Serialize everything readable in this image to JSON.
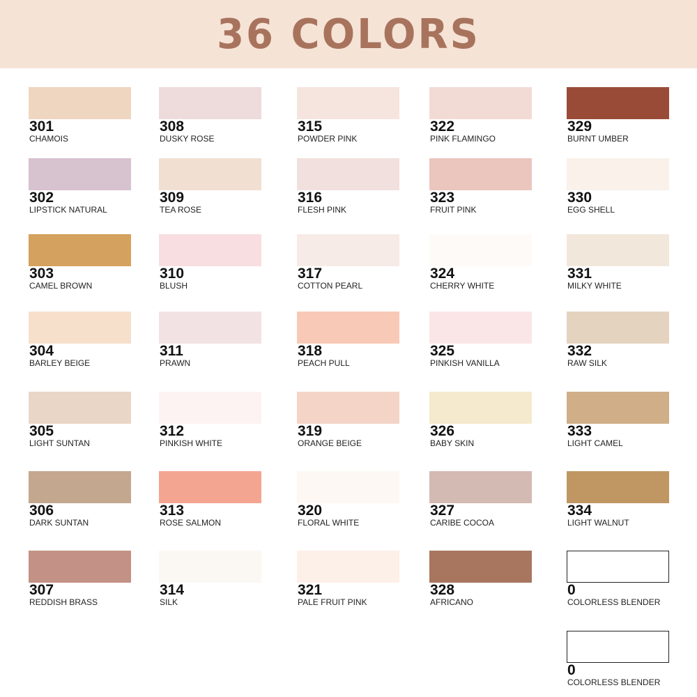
{
  "title": "36 COLORS",
  "columns": [
    [
      {
        "code": "301",
        "name": "CHAMOIS",
        "color": "#efd6c0"
      },
      {
        "code": "302",
        "name": "LIPSTICK NATURAL",
        "color": "#d7c2d0"
      },
      {
        "code": "303",
        "name": "CAMEL BROWN",
        "color": "#d5a15e"
      },
      {
        "code": "304",
        "name": "BARLEY BEIGE",
        "color": "#f6e0cb"
      },
      {
        "code": "305",
        "name": "LIGHT SUNTAN",
        "color": "#ead6c6"
      },
      {
        "code": "306",
        "name": "DARK SUNTAN",
        "color": "#c3a78e"
      },
      {
        "code": "307",
        "name": "REDDISH BRASS",
        "color": "#c39185"
      }
    ],
    [
      {
        "code": "308",
        "name": "DUSKY ROSE",
        "color": "#eedbdb"
      },
      {
        "code": "309",
        "name": "TEA ROSE",
        "color": "#f1e0d2"
      },
      {
        "code": "310",
        "name": "BLUSH",
        "color": "#f8dee0"
      },
      {
        "code": "311",
        "name": "PRAWN",
        "color": "#f3e2e3"
      },
      {
        "code": "312",
        "name": "PINKISH WHITE",
        "color": "#fdf3f3"
      },
      {
        "code": "313",
        "name": "ROSE SALMON",
        "color": "#f4a592"
      },
      {
        "code": "314",
        "name": "SILK",
        "color": "#fbf8f3"
      }
    ],
    [
      {
        "code": "315",
        "name": "POWDER PINK",
        "color": "#f6e5de"
      },
      {
        "code": "316",
        "name": "FLESH PINK",
        "color": "#f1e0dd"
      },
      {
        "code": "317",
        "name": "COTTON PEARL",
        "color": "#f6ebe7"
      },
      {
        "code": "318",
        "name": "PEACH PULL",
        "color": "#f9c9b7"
      },
      {
        "code": "319",
        "name": "ORANGE BEIGE",
        "color": "#f4d4c6"
      },
      {
        "code": "320",
        "name": "FLORAL WHITE",
        "color": "#fdf8f3"
      },
      {
        "code": "321",
        "name": "PALE FRUIT PINK",
        "color": "#fdf0e8"
      }
    ],
    [
      {
        "code": "322",
        "name": "PINK FLAMINGO",
        "color": "#f2dbd4"
      },
      {
        "code": "323",
        "name": "FRUIT PINK",
        "color": "#ebc6be"
      },
      {
        "code": "324",
        "name": "CHERRY WHITE",
        "color": "#fefaf7"
      },
      {
        "code": "325",
        "name": "PINKISH VANILLA",
        "color": "#fbe6e7"
      },
      {
        "code": "326",
        "name": "BABY SKIN",
        "color": "#f5eacd"
      },
      {
        "code": "327",
        "name": "CARIBE COCOA",
        "color": "#d3bab2"
      },
      {
        "code": "328",
        "name": "AFRICANO",
        "color": "#a8765f"
      }
    ],
    [
      {
        "code": "329",
        "name": "BURNT UMBER",
        "color": "#9a4b37"
      },
      {
        "code": "330",
        "name": "EGG SHELL",
        "color": "#f9f1ea"
      },
      {
        "code": "331",
        "name": "MILKY WHITE",
        "color": "#f2e7db"
      },
      {
        "code": "332",
        "name": "RAW SILK",
        "color": "#e4d3bf"
      },
      {
        "code": "333",
        "name": "LIGHT CAMEL",
        "color": "#cfae88"
      },
      {
        "code": "334",
        "name": "LIGHT WALNUT",
        "color": "#c09763"
      },
      {
        "code": "0",
        "name": "COLORLESS BLENDER",
        "color": "#ffffff"
      },
      {
        "code": "0",
        "name": "COLORLESS BLENDER",
        "color": "#ffffff"
      }
    ]
  ]
}
